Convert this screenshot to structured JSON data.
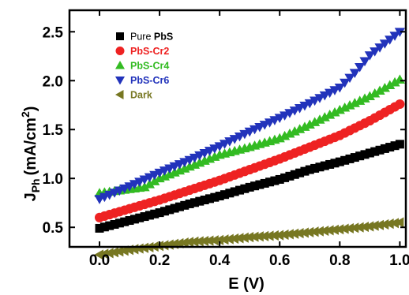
{
  "chart_data": {
    "type": "scatter",
    "title": "",
    "xlabel": "E (V)",
    "ylabel_main": "J",
    "ylabel_sub": "Ph",
    "ylabel_unit": "(mA/cm",
    "ylabel_sup": "2",
    "ylabel_close": ")",
    "xlim": [
      -0.1,
      1.02
    ],
    "ylim": [
      0.3,
      2.72
    ],
    "xticks": [
      {
        "value": 0.0,
        "label": "0.0"
      },
      {
        "value": 0.2,
        "label": "0.2"
      },
      {
        "value": 0.4,
        "label": "0.4"
      },
      {
        "value": 0.6,
        "label": "0.6"
      },
      {
        "value": 0.8,
        "label": "0.8"
      },
      {
        "value": 1.0,
        "label": "1.0"
      }
    ],
    "yticks": [
      {
        "value": 0.5,
        "label": "0.5"
      },
      {
        "value": 1.0,
        "label": "1.0"
      },
      {
        "value": 1.5,
        "label": "1.5"
      },
      {
        "value": 2.0,
        "label": "2.0"
      },
      {
        "value": 2.5,
        "label": "2.5"
      }
    ],
    "grid": false,
    "legend_position": "top-left",
    "series": [
      {
        "name": "Pure",
        "name_bold": "PbS",
        "marker": "square",
        "color": "#000000",
        "x": [
          0.0,
          0.1,
          0.2,
          0.3,
          0.4,
          0.5,
          0.6,
          0.7,
          0.8,
          0.9,
          1.0
        ],
        "y": [
          0.49,
          0.57,
          0.65,
          0.74,
          0.82,
          0.91,
          0.99,
          1.09,
          1.17,
          1.26,
          1.35
        ]
      },
      {
        "name": "PbS-Cr2",
        "marker": "circle",
        "color": "#ee2222",
        "x": [
          0.0,
          0.1,
          0.2,
          0.3,
          0.4,
          0.5,
          0.6,
          0.7,
          0.8,
          0.9,
          1.0
        ],
        "y": [
          0.6,
          0.69,
          0.78,
          0.88,
          0.98,
          1.09,
          1.2,
          1.32,
          1.44,
          1.59,
          1.76
        ]
      },
      {
        "name": "PbS-Cr4",
        "marker": "triangle-up",
        "color": "#33bb22",
        "x": [
          0.0,
          0.1,
          0.15,
          0.2,
          0.3,
          0.4,
          0.5,
          0.6,
          0.7,
          0.8,
          0.9,
          1.0
        ],
        "y": [
          0.85,
          0.89,
          0.91,
          1.0,
          1.12,
          1.24,
          1.32,
          1.41,
          1.55,
          1.7,
          1.84,
          2.01
        ]
      },
      {
        "name": "PbS-Cr6",
        "marker": "triangle-down",
        "color": "#2233bb",
        "x": [
          0.0,
          0.1,
          0.2,
          0.3,
          0.4,
          0.5,
          0.6,
          0.7,
          0.8,
          0.85,
          0.9,
          1.0
        ],
        "y": [
          0.79,
          0.92,
          1.06,
          1.19,
          1.33,
          1.48,
          1.62,
          1.77,
          1.93,
          2.08,
          2.26,
          2.5
        ]
      },
      {
        "name": "Dark",
        "marker": "triangle-left",
        "color": "#777722",
        "x": [
          0.0,
          0.1,
          0.2,
          0.3,
          0.4,
          0.5,
          0.6,
          0.7,
          0.8,
          0.9,
          1.0
        ],
        "y": [
          0.22,
          0.27,
          0.31,
          0.35,
          0.37,
          0.4,
          0.42,
          0.45,
          0.48,
          0.51,
          0.55
        ]
      }
    ]
  }
}
